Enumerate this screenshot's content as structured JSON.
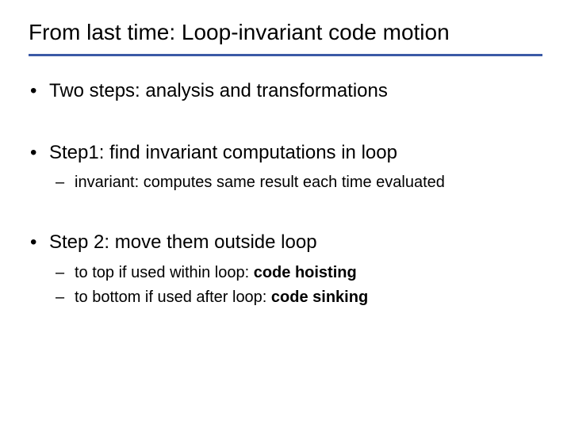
{
  "colors": {
    "rule": "#3b5aa6",
    "text": "#000000",
    "background": "#ffffff"
  },
  "typography": {
    "title_fontsize": 28,
    "bullet1_fontsize": 24,
    "bullet2_fontsize": 20,
    "font_family": "Arial"
  },
  "title": "From last time: Loop-invariant code motion",
  "bullets": [
    {
      "text": "Two steps: analysis and transformations",
      "sub": []
    },
    {
      "text": "Step1: find invariant computations in loop",
      "sub": [
        {
          "prefix": "invariant: computes same result each time evaluated",
          "bold": ""
        }
      ]
    },
    {
      "text": "Step 2: move them outside loop",
      "sub": [
        {
          "prefix": "to top if used within loop: ",
          "bold": "code hoisting"
        },
        {
          "prefix": "to bottom if used after loop: ",
          "bold": "code sinking"
        }
      ]
    }
  ]
}
